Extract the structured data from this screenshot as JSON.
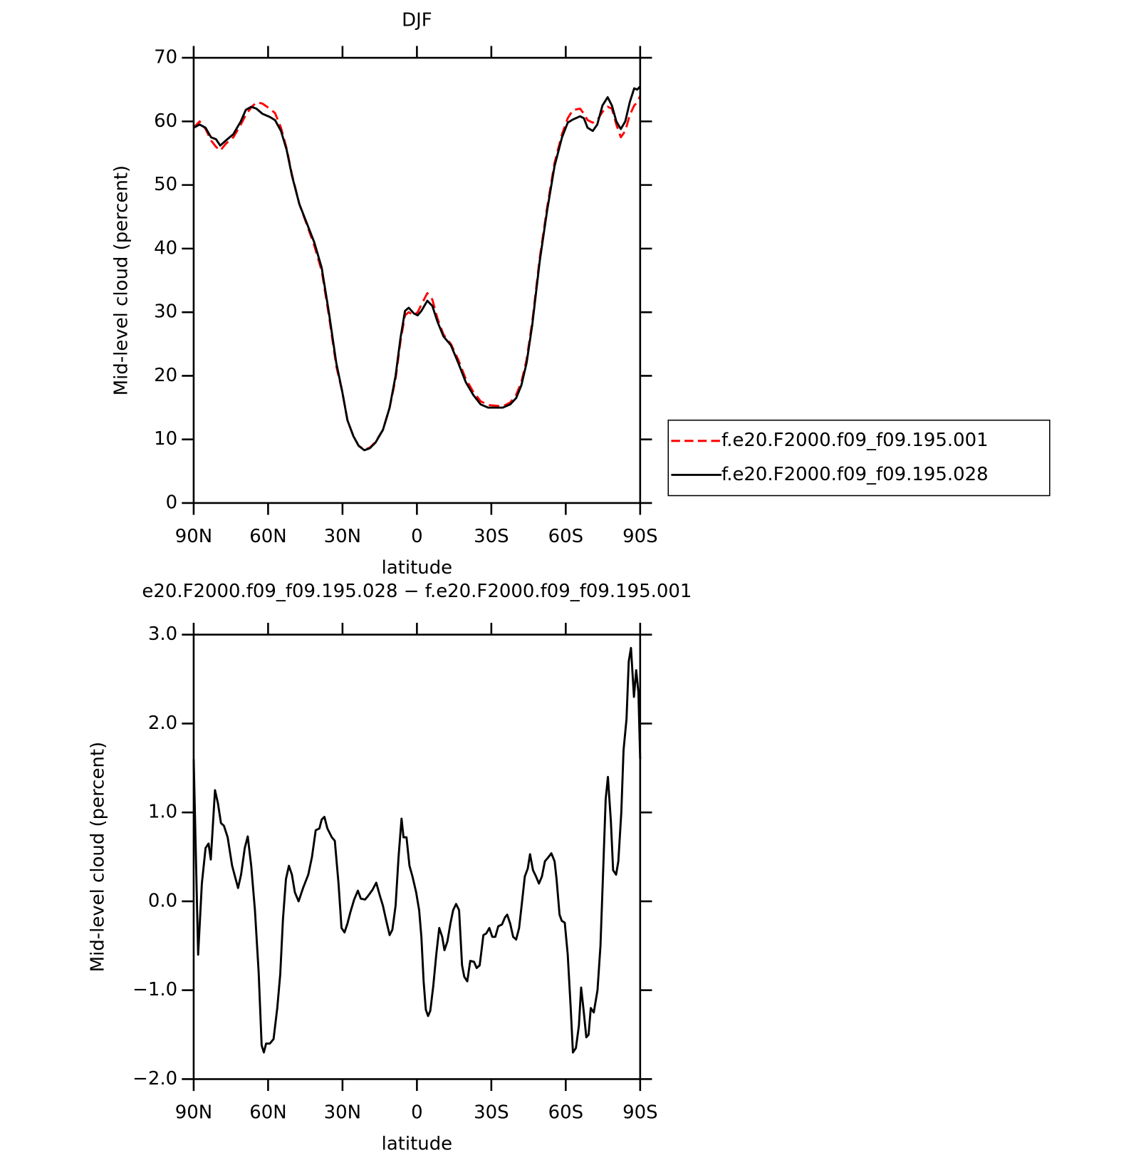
{
  "chart_data": [
    {
      "type": "line",
      "title": "DJF",
      "x_label": "latitude",
      "y_label": "Mid-level cloud (percent)",
      "x": [
        90,
        87.6,
        85.2,
        83,
        81,
        79.3,
        77,
        74,
        71,
        69,
        66.8,
        64.7,
        62.3,
        59.3,
        57.2,
        54.8,
        52.5,
        50.4,
        47.4,
        44.4,
        41.4,
        38.4,
        35.5,
        32.5,
        30.1,
        28,
        25.6,
        23.5,
        21.2,
        19,
        16.7,
        13.7,
        11,
        8.6,
        6.6,
        4.8,
        3.3,
        1.2,
        -0.3,
        -1.8,
        -4.2,
        -6.2,
        -8.3,
        -10.7,
        -13.7,
        -16.7,
        -19.7,
        -22.7,
        -25.7,
        -28.7,
        -31.6,
        -34.6,
        -37.6,
        -40,
        -42.1,
        -44.2,
        -46.5,
        -49.5,
        -52.5,
        -55.5,
        -58.5,
        -60.8,
        -62.9,
        -65.8,
        -67.3,
        -68.8,
        -70.9,
        -72.7,
        -74.8,
        -76.9,
        -78.6,
        -80.4,
        -82.2,
        -84,
        -85.8,
        -87.6,
        -88.8,
        -90
      ],
      "series": [
        {
          "name": "f.e20.F2000.f09_f09.195.001",
          "color": "#ff0000",
          "line_style": "dashed",
          "values": [
            59,
            60,
            58.8,
            57,
            56,
            55.4,
            56.5,
            57.5,
            59.5,
            61,
            62.2,
            63,
            62.8,
            62,
            61.3,
            59,
            55.7,
            51.7,
            47,
            43.8,
            40.5,
            36.5,
            29.5,
            21.5,
            17.5,
            13,
            10.5,
            9,
            8.4,
            8.7,
            9.6,
            11.5,
            15,
            19.5,
            25.5,
            29.5,
            30,
            29.5,
            30,
            31.2,
            33,
            32,
            29,
            26.5,
            25,
            22.5,
            19.5,
            17.5,
            16,
            15.4,
            15.3,
            15.2,
            15.8,
            17,
            19,
            22.5,
            28.5,
            38.5,
            46.5,
            53.5,
            58,
            60.5,
            61.8,
            62,
            61.2,
            60.2,
            59.8,
            60.2,
            61.5,
            62.3,
            62,
            59.5,
            57.5,
            58.5,
            61,
            62.5,
            63,
            64
          ]
        },
        {
          "name": "f.e20.F2000.f09_f09.195.028",
          "color": "#000000",
          "line_style": "solid",
          "values": [
            59,
            59.5,
            59,
            57.5,
            57.2,
            56.2,
            57,
            58,
            60,
            61.8,
            62.3,
            62,
            61.2,
            60.7,
            60.2,
            58.5,
            55.5,
            51.5,
            47,
            44,
            41,
            37,
            30,
            22,
            17.5,
            13,
            10.5,
            9,
            8.3,
            8.6,
            9.5,
            11.5,
            15,
            20,
            26,
            30.2,
            30.7,
            29.8,
            29.5,
            30.2,
            31.8,
            31,
            28.5,
            26.2,
            24.8,
            22,
            19,
            17,
            15.5,
            15,
            15,
            15,
            15.5,
            16.5,
            18.5,
            22,
            28,
            38,
            46,
            53,
            57.5,
            59.8,
            60.3,
            60.8,
            60.5,
            59,
            58.5,
            59.5,
            62.5,
            63.8,
            62.5,
            60,
            58.8,
            60,
            63,
            65.2,
            65,
            65.5
          ]
        }
      ],
      "xlim": [
        90,
        -90
      ],
      "xticks": [
        {
          "value": 90,
          "label": "90N"
        },
        {
          "value": 60,
          "label": "60N"
        },
        {
          "value": 30,
          "label": "30N"
        },
        0,
        {
          "value": -30,
          "label": "30S"
        },
        {
          "value": -60,
          "label": "60S"
        },
        {
          "value": -90,
          "label": "90S"
        }
      ],
      "ylim": [
        0,
        70
      ],
      "yticks": [
        0,
        10,
        20,
        30,
        40,
        50,
        60,
        70
      ],
      "legend": "right"
    },
    {
      "type": "line",
      "title": "e20.F2000.f09_f09.195.028 − f.e20.F2000.f09_f09.195.001",
      "x_label": "latitude",
      "y_label": "Mid-level cloud (percent)",
      "x": [
        90,
        88.2,
        86.7,
        85.2,
        84,
        83.1,
        81.4,
        80.2,
        79,
        77.8,
        76.3,
        74.5,
        72.1,
        70.9,
        69.4,
        68.2,
        66.8,
        65.3,
        63.8,
        62.6,
        61.7,
        60.8,
        59.3,
        57.8,
        56.3,
        55.1,
        54,
        52.8,
        51.6,
        50.4,
        49.2,
        47.7,
        45.9,
        43.8,
        42.3,
        40.8,
        39.3,
        38.4,
        37.3,
        36.1,
        34.3,
        33.1,
        31.6,
        30.4,
        29.2,
        28,
        26.8,
        25.3,
        23.8,
        22.6,
        20.9,
        19.7,
        17.9,
        16.4,
        14.9,
        13.7,
        12.5,
        11,
        9.9,
        8.6,
        7.4,
        6.2,
        5.4,
        4.2,
        3,
        1.8,
        0.3,
        -0.9,
        -1.8,
        -2.7,
        -3.6,
        -4.5,
        -5.4,
        -6.6,
        -7.8,
        -9,
        -10.2,
        -11.1,
        -12.3,
        -13.5,
        -14.6,
        -15.8,
        -17,
        -18.2,
        -19.1,
        -20.3,
        -21.5,
        -23,
        -24.1,
        -25.3,
        -26.8,
        -28,
        -29.2,
        -30.4,
        -31.6,
        -32.8,
        -34.3,
        -35.5,
        -36.4,
        -37.6,
        -38.8,
        -40,
        -41.2,
        -42.4,
        -43.5,
        -44.7,
        -45.6,
        -46.8,
        -48,
        -49.2,
        -50.4,
        -51.6,
        -53.1,
        -54.2,
        -55.5,
        -56.3,
        -57.5,
        -58.4,
        -59.6,
        -60.8,
        -62,
        -62.9,
        -64.1,
        -65.3,
        -66.2,
        -67.1,
        -68.3,
        -69.2,
        -70.1,
        -71.3,
        -72.8,
        -74,
        -74.9,
        -76.1,
        -77,
        -78.2,
        -79.1,
        -80.3,
        -81.2,
        -82.4,
        -83.3,
        -84.5,
        -85.4,
        -86.3,
        -87.5,
        -88.4,
        -89.3,
        -90
      ],
      "values": [
        1.6,
        -0.6,
        0.2,
        0.6,
        0.65,
        0.47,
        1.25,
        1.1,
        0.88,
        0.85,
        0.72,
        0.4,
        0.15,
        0.3,
        0.6,
        0.73,
        0.4,
        -0.1,
        -0.8,
        -1.62,
        -1.7,
        -1.6,
        -1.6,
        -1.55,
        -1.2,
        -0.82,
        -0.2,
        0.25,
        0.4,
        0.3,
        0.1,
        0,
        0.15,
        0.3,
        0.5,
        0.8,
        0.82,
        0.92,
        0.95,
        0.82,
        0.72,
        0.68,
        0.2,
        -0.3,
        -0.35,
        -0.25,
        -0.12,
        0.02,
        0.12,
        0.03,
        0.02,
        0.06,
        0.13,
        0.21,
        0.06,
        -0.05,
        -0.2,
        -0.38,
        -0.32,
        -0.05,
        0.5,
        0.93,
        0.72,
        0.72,
        0.4,
        0.28,
        0.1,
        -0.1,
        -0.4,
        -0.9,
        -1.22,
        -1.29,
        -1.23,
        -0.95,
        -0.6,
        -0.3,
        -0.4,
        -0.55,
        -0.45,
        -0.25,
        -0.1,
        -0.03,
        -0.1,
        -0.72,
        -0.85,
        -0.9,
        -0.67,
        -0.68,
        -0.75,
        -0.72,
        -0.38,
        -0.36,
        -0.3,
        -0.4,
        -0.4,
        -0.28,
        -0.26,
        -0.18,
        -0.15,
        -0.25,
        -0.4,
        -0.43,
        -0.3,
        0,
        0.28,
        0.37,
        0.53,
        0.35,
        0.28,
        0.2,
        0.28,
        0.45,
        0.5,
        0.54,
        0.45,
        0.25,
        -0.15,
        -0.22,
        -0.24,
        -0.6,
        -1.2,
        -1.7,
        -1.65,
        -1.4,
        -0.97,
        -1.2,
        -1.53,
        -1.5,
        -1.2,
        -1.25,
        -1,
        -0.5,
        0.2,
        1.15,
        1.4,
        0.9,
        0.35,
        0.3,
        0.45,
        1,
        1.7,
        2.05,
        2.7,
        2.85,
        2.3,
        2.6,
        2.35,
        1.6
      ],
      "color": "#000000",
      "xlim": [
        90,
        -90
      ],
      "xticks": [
        {
          "value": 90,
          "label": "90N"
        },
        {
          "value": 60,
          "label": "60N"
        },
        {
          "value": 30,
          "label": "30N"
        },
        0,
        {
          "value": -30,
          "label": "30S"
        },
        {
          "value": -60,
          "label": "60S"
        },
        {
          "value": -90,
          "label": "90S"
        }
      ],
      "ylim": [
        -2,
        3
      ],
      "yticks": [
        {
          "value": -2,
          "label": "−2.0"
        },
        {
          "value": -1,
          "label": "−1.0"
        },
        {
          "value": 0,
          "label": "0.0"
        },
        {
          "value": 1,
          "label": "1.0"
        },
        {
          "value": 2,
          "label": "2.0"
        },
        {
          "value": 3,
          "label": "3.0"
        }
      ]
    }
  ]
}
